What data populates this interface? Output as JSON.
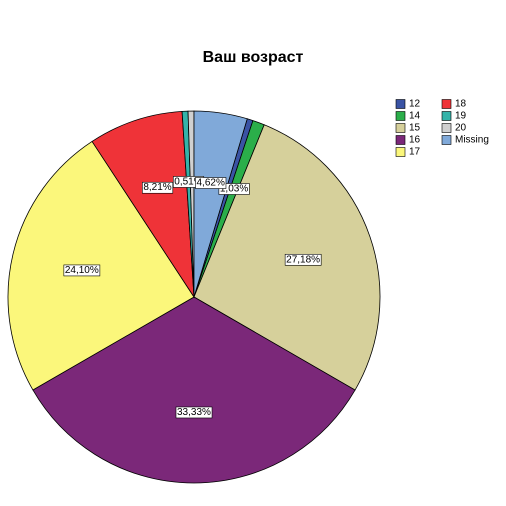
{
  "chart_data": {
    "type": "pie",
    "title": "Ваш возраст",
    "categories": [
      "12",
      "14",
      "15",
      "16",
      "17",
      "18",
      "19",
      "20",
      "Missing"
    ],
    "values": [
      0.51,
      1.03,
      27.18,
      33.33,
      24.1,
      8.21,
      0.51,
      0.51,
      4.62
    ],
    "value_labels": [
      null,
      "1,03%",
      "27,18%",
      "33,33%",
      "24,10%",
      "8,21%",
      "0,51%",
      null,
      "4,62%"
    ],
    "colors": [
      "#3a53a4",
      "#2bae4a",
      "#d6d09b",
      "#7b2879",
      "#fbf77b",
      "#ef3338",
      "#34b3a9",
      "#d0d0d0",
      "#80a9d9"
    ]
  }
}
